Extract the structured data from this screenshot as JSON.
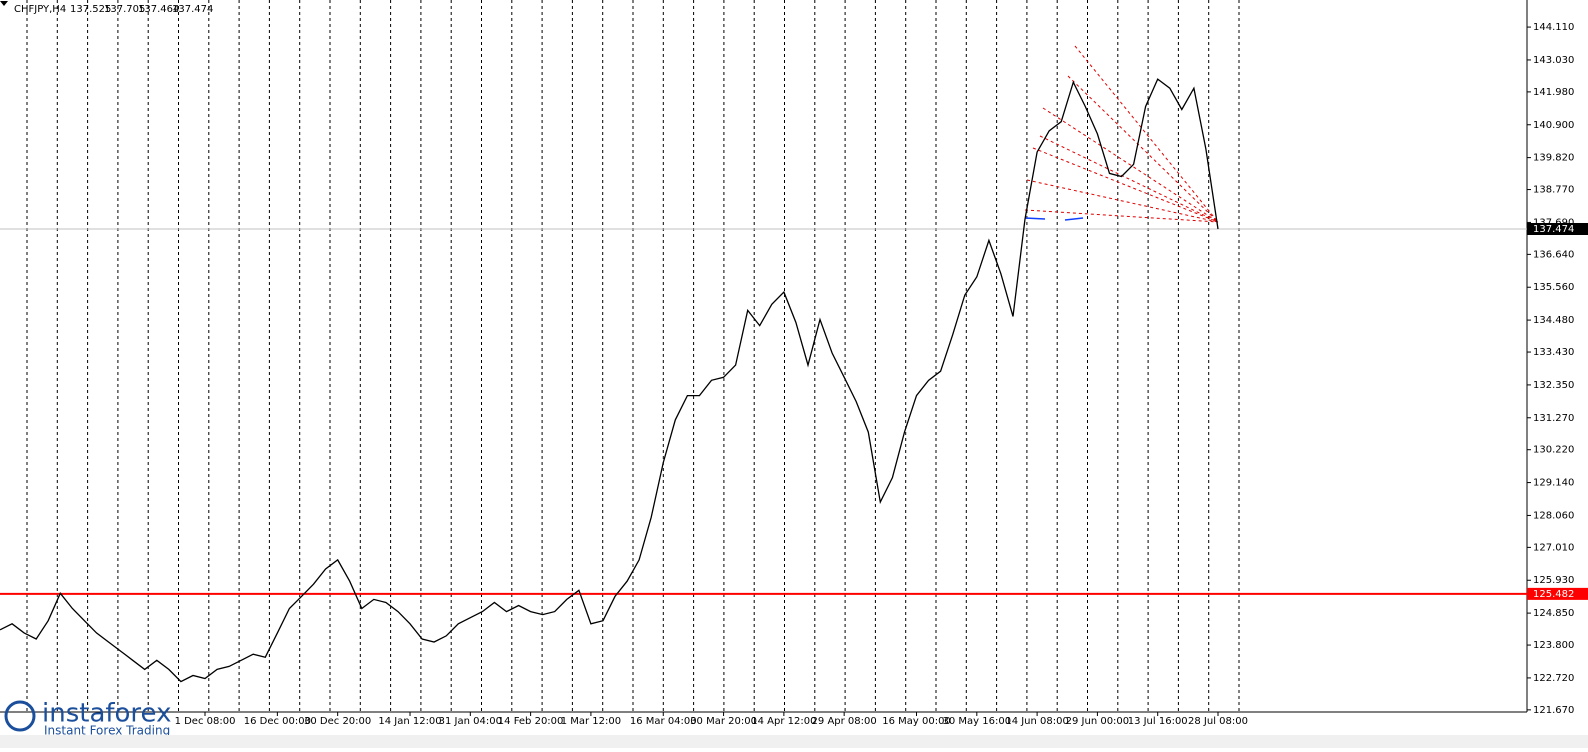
{
  "header": {
    "symbol": "CHFJPY,H4",
    "open": 137.525,
    "high": 137.705,
    "low": 137.464,
    "close": 137.474
  },
  "logo": {
    "brand": "instaforex",
    "tagline": "Instant Forex Trading"
  },
  "chart_data": {
    "type": "line",
    "color": "#000000",
    "categories": [
      null,
      null,
      null,
      null,
      null,
      null,
      null,
      null,
      null,
      null,
      null,
      null,
      null,
      null,
      null,
      null,
      null,
      "1 Dec 08:00",
      null,
      null,
      null,
      null,
      null,
      "16 Dec 00:00",
      null,
      null,
      null,
      null,
      "30 Dec 20:00",
      null,
      null,
      null,
      null,
      null,
      "14 Jan 12:00",
      null,
      null,
      null,
      null,
      "31 Jan 04:00",
      null,
      null,
      null,
      null,
      "14 Feb 20:00",
      null,
      null,
      null,
      null,
      "1 Mar 12:00",
      null,
      null,
      null,
      null,
      null,
      "16 Mar 04:00",
      null,
      null,
      null,
      null,
      "30 Mar 20:00",
      null,
      null,
      null,
      null,
      "14 Apr 12:00",
      null,
      null,
      null,
      null,
      "29 Apr 08:00",
      null,
      null,
      null,
      null,
      null,
      "16 May 00:00",
      null,
      null,
      null,
      null,
      "30 May 16:00",
      null,
      null,
      null,
      null,
      "14 Jun 08:00",
      null,
      null,
      null,
      null,
      "29 Jun 00:00",
      null,
      null,
      null,
      null,
      "13 Jul 16:00",
      null,
      null,
      null,
      null,
      "28 Jul 08:00"
    ],
    "values": [
      124.3,
      124.5,
      124.2,
      124.0,
      124.6,
      125.5,
      125.0,
      124.6,
      124.2,
      123.9,
      123.6,
      123.3,
      123.0,
      123.3,
      123.0,
      122.6,
      122.8,
      122.7,
      123.0,
      123.1,
      123.3,
      123.5,
      123.4,
      124.2,
      125.0,
      125.4,
      125.8,
      126.3,
      126.6,
      125.9,
      125.0,
      125.3,
      125.2,
      124.9,
      124.5,
      124.0,
      123.9,
      124.1,
      124.5,
      124.7,
      124.9,
      125.2,
      124.9,
      125.1,
      124.9,
      124.8,
      124.9,
      125.3,
      125.6,
      124.5,
      124.6,
      125.4,
      125.9,
      126.6,
      128.0,
      129.8,
      131.2,
      132.0,
      132.0,
      132.5,
      132.6,
      133.0,
      134.8,
      134.3,
      135.0,
      135.4,
      134.4,
      133.0,
      134.5,
      133.4,
      132.6,
      131.8,
      130.8,
      128.5,
      129.3,
      130.8,
      132.0,
      132.5,
      132.8,
      134.0,
      135.3,
      135.9,
      137.1,
      136.0,
      134.6,
      137.8,
      140.0,
      140.7,
      141.0,
      142.3,
      141.5,
      140.6,
      139.3,
      139.2,
      139.6,
      141.5,
      142.4,
      142.1,
      141.4,
      142.1,
      140.1,
      137.474
    ],
    "ylim": [
      121.6,
      145.0
    ],
    "yticks": [
      {
        "value": 144.11,
        "label": "144.110"
      },
      {
        "value": 143.03,
        "label": "143.030"
      },
      {
        "value": 141.98,
        "label": "141.980"
      },
      {
        "value": 140.9,
        "label": "140.900"
      },
      {
        "value": 139.82,
        "label": "139.820"
      },
      {
        "value": 138.77,
        "label": "138.770"
      },
      {
        "value": 137.69,
        "label": "137.690"
      },
      {
        "value": 136.64,
        "label": "136.640"
      },
      {
        "value": 135.56,
        "label": "135.560"
      },
      {
        "value": 134.48,
        "label": "134.480"
      },
      {
        "value": 133.43,
        "label": "133.430"
      },
      {
        "value": 132.35,
        "label": "132.350"
      },
      {
        "value": 131.27,
        "label": "131.270"
      },
      {
        "value": 130.22,
        "label": "130.220"
      },
      {
        "value": 129.14,
        "label": "129.140"
      },
      {
        "value": 128.06,
        "label": "128.060"
      },
      {
        "value": 127.01,
        "label": "127.010"
      },
      {
        "value": 125.93,
        "label": "125.930"
      },
      {
        "value": 124.85,
        "label": "124.850"
      },
      {
        "value": 123.8,
        "label": "123.800"
      },
      {
        "value": 122.72,
        "label": "122.720"
      },
      {
        "value": 121.67,
        "label": "121.670"
      }
    ],
    "hlines": [
      {
        "value": 137.474,
        "color": "#c0c0c0",
        "label_bg": "#000000"
      },
      {
        "value": 125.482,
        "color": "#ff0000",
        "label_bg": "#ff0000"
      }
    ]
  }
}
